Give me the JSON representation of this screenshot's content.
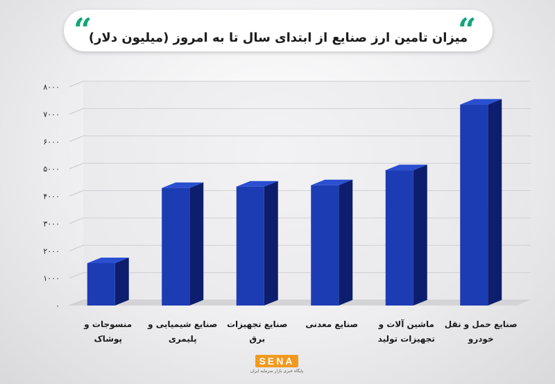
{
  "header": {
    "title": "میزان تامین ارز صنایع از ابتدای سال تا به امروز (میلیون دلار)",
    "quote_glyph": "“"
  },
  "brand": {
    "logo_text": "SENA",
    "logo_subtext": "پایگاه خبری بازار سرمایه ایران"
  },
  "colors": {
    "bar_front": "#1c3cb4",
    "bar_side": "#0d1e6e",
    "bar_top": "#2a4fd0",
    "floor": "#d4d4d7",
    "quote": "#12a57a",
    "logo": "#f29a1f"
  },
  "chart_data": {
    "type": "bar",
    "categories": [
      [
        "منسوجات و",
        "پوشاک"
      ],
      [
        "صنایع شیمیایی و",
        "پلیمری"
      ],
      [
        "صنایع تجهیزات",
        "برق"
      ],
      [
        "صنایع معدنی"
      ],
      [
        "ماشین آلات و",
        "تجهیزات تولید"
      ],
      [
        "صنایع حمل و نقل",
        "خودرو"
      ]
    ],
    "values": [
      1550,
      4300,
      4350,
      4400,
      4950,
      7350
    ],
    "ylim": [
      0,
      8000
    ],
    "yticks": [
      0,
      1000,
      2000,
      3000,
      4000,
      5000,
      6000,
      7000,
      8000
    ],
    "ytick_labels": [
      "۰",
      "۱۰۰۰",
      "۲۰۰۰",
      "۳۰۰۰",
      "۴۰۰۰",
      "۵۰۰۰",
      "۶۰۰۰",
      "۷۰۰۰",
      "۸۰۰۰"
    ],
    "grid": true,
    "legend": "none"
  }
}
